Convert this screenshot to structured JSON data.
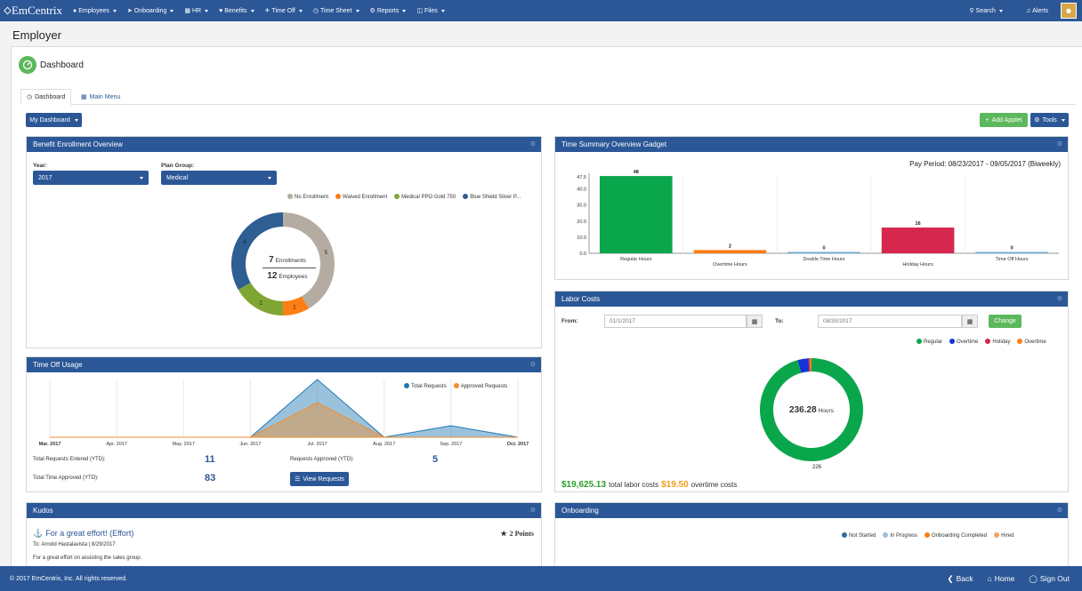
{
  "topnav": {
    "brand": "EmCentrix",
    "items": [
      {
        "label": "Employees"
      },
      {
        "label": "Onboarding"
      },
      {
        "label": "HR"
      },
      {
        "label": "Benefits"
      },
      {
        "label": "Time Off"
      },
      {
        "label": "Time Sheet"
      },
      {
        "label": "Reports"
      },
      {
        "label": "Files"
      }
    ],
    "search_label": "Search",
    "alerts_label": "Alerts"
  },
  "page_title": "Employer",
  "dashboard_title": "Dashboard",
  "tabs": [
    {
      "label": "Dashboard"
    },
    {
      "label": "Main Menu"
    }
  ],
  "my_dashboard_label": "My Dashboard",
  "add_applet_label": "Add Applet",
  "tools_label": "Tools",
  "colors": {
    "brand": "#2b5797",
    "green": "#5cb85c"
  },
  "benefit": {
    "title": "Benefit Enrollment Overview",
    "year_label": "Year:",
    "year_value": "2017",
    "plan_label": "Plan Group:",
    "plan_value": "Medical",
    "enrollments_count": "7",
    "enrollments_label": "Enrollments",
    "employees_count": "12",
    "employees_label": "Employees"
  },
  "timeoff": {
    "title": "Time Off Usage",
    "total_requests_label": "Total Requests Entered (YTD):",
    "total_requests_value": "11",
    "requests_approved_label": "Requests Approved (YTD):",
    "requests_approved_value": "5",
    "total_time_label": "Total Time Approved (YTD):",
    "total_time_value": "83",
    "view_requests_label": "View Requests"
  },
  "kudos": {
    "title": "Kudos",
    "item_title": "For a great effort! (Effort)",
    "points": "2 Points",
    "to_line": "To: Arnold Hastalavista | 8/29/2017",
    "message": "For a great effort on assisting the sales group."
  },
  "time_summary": {
    "title": "Time Summary Overview Gadget",
    "pay_period": "Pay Period: 08/23/2017 - 09/05/2017 (Biweekly)"
  },
  "labor": {
    "title": "Labor Costs",
    "from_label": "From:",
    "from_value": "01/1/2017",
    "to_label": "To:",
    "to_value": "08/30/2017",
    "change_label": "Change",
    "center_value": "236.28",
    "center_unit": "Hours",
    "total_cost": "$19,625.13",
    "total_cost_label": "total labor costs",
    "overtime_cost": "$19.50",
    "overtime_cost_label": "overtime costs"
  },
  "onboarding": {
    "title": "Onboarding"
  },
  "footer": {
    "copyright": "© 2017 EmCentrix, Inc. All rights reserved.",
    "back_label": "Back",
    "home_label": "Home",
    "signout_label": "Sign Out"
  },
  "chart_data": [
    {
      "type": "pie",
      "legend": [
        "No Enrollment",
        "Waived Enrollment",
        "Medical PPO Gold 750",
        "Blue Shield Silver P..."
      ],
      "values": [
        5,
        1,
        2,
        4
      ],
      "colors": [
        "#b5aca1",
        "#fd7e14",
        "#7fa632",
        "#2e5e92"
      ],
      "legend_placement": "top-right"
    },
    {
      "type": "area",
      "categories": [
        "Mar. 2017",
        "Apr. 2017",
        "May. 2017",
        "Jun. 2017",
        "Jul. 2017",
        "Aug. 2017",
        "Sep. 2017",
        "Oct. 2017"
      ],
      "series": [
        {
          "name": "Total Requests",
          "values": [
            0,
            0,
            0,
            0,
            5,
            0,
            1,
            0
          ],
          "color": "#1f77b4"
        },
        {
          "name": "Approved Requests",
          "values": [
            0,
            0,
            0,
            0,
            3,
            0,
            0,
            0
          ],
          "color": "#f28e2b"
        }
      ],
      "legend_placement": "top-right"
    },
    {
      "type": "bar",
      "categories": [
        "Regular Hours",
        "Overtime Hours",
        "Double Time Hours",
        "Holiday Hours",
        "Time Off Hours"
      ],
      "values": [
        48,
        2,
        0,
        16,
        0
      ],
      "colors": [
        "#0aa64b",
        "#fd7e14",
        "#6aaed6",
        "#d6284e",
        "#6aaed6"
      ],
      "yticks": [
        "0.0",
        "10.0",
        "20.0",
        "30.0",
        "40.0",
        "47.5"
      ],
      "ylim": [
        0,
        47.5
      ]
    },
    {
      "type": "pie",
      "legend": [
        "Regular",
        "Overtime",
        "Holiday",
        "Overtime"
      ],
      "values": [
        226,
        8,
        1,
        1.28
      ],
      "colors": [
        "#0aa64b",
        "#1332d8",
        "#d6284e",
        "#fd7e14"
      ],
      "slice_labels": [
        "226"
      ],
      "legend_placement": "top-right"
    },
    {
      "type": "pie",
      "legend": [
        "Not Started",
        "In Progress",
        "Onboarding Completed",
        "Hired"
      ],
      "colors": [
        "#2e6ea6",
        "#9bbfe0",
        "#fd7e14",
        "#f4a261"
      ],
      "legend_placement": "top"
    }
  ]
}
